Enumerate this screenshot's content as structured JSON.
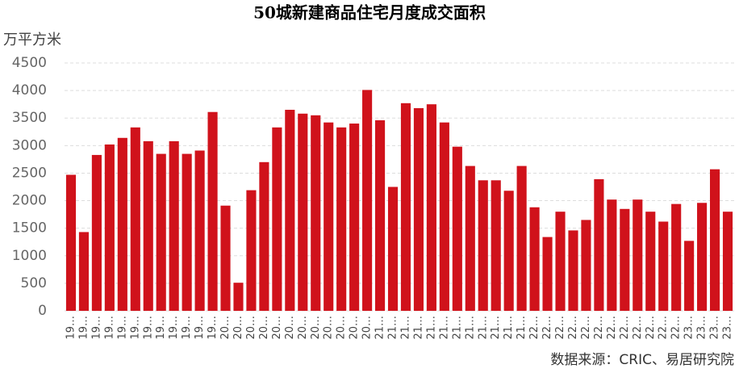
{
  "chart_data": {
    "type": "bar",
    "title": "50城新建商品住宅月度成交面积",
    "y_axis_label": "万平方米",
    "source": "数据来源：CRIC、易居研究院",
    "color": "#d0121b",
    "grid": true,
    "categories": [
      "19…",
      "19…",
      "19…",
      "19…",
      "19…",
      "19…",
      "19…",
      "19…",
      "19…",
      "19…",
      "19…",
      "19…",
      "20…",
      "20…",
      "20…",
      "20…",
      "20…",
      "20…",
      "20…",
      "20…",
      "20…",
      "20…",
      "20…",
      "20…",
      "21…",
      "21…",
      "21…",
      "21…",
      "21…",
      "21…",
      "21…",
      "21…",
      "21…",
      "21…",
      "21…",
      "21…",
      "22…",
      "22…",
      "22…",
      "22…",
      "22…",
      "22…",
      "22…",
      "22…",
      "22…",
      "22…",
      "22…",
      "22…",
      "23…",
      "23…",
      "23…",
      "23…"
    ],
    "values": [
      2470,
      1430,
      2830,
      3020,
      3140,
      3330,
      3080,
      2850,
      3080,
      2850,
      2910,
      3610,
      1910,
      510,
      2190,
      2700,
      3330,
      3650,
      3580,
      3550,
      3420,
      3330,
      3400,
      4010,
      3460,
      2250,
      3770,
      3680,
      3750,
      3420,
      2980,
      2630,
      2370,
      2370,
      2180,
      2630,
      1880,
      1340,
      1800,
      1460,
      1650,
      2390,
      2020,
      1850,
      2020,
      1800,
      1620,
      1940,
      1270,
      1960,
      2570,
      1800
    ],
    "ylim": [
      0,
      4500
    ],
    "yticks": [
      0,
      500,
      1000,
      1500,
      2000,
      2500,
      3000,
      3500,
      4000,
      4500
    ]
  }
}
